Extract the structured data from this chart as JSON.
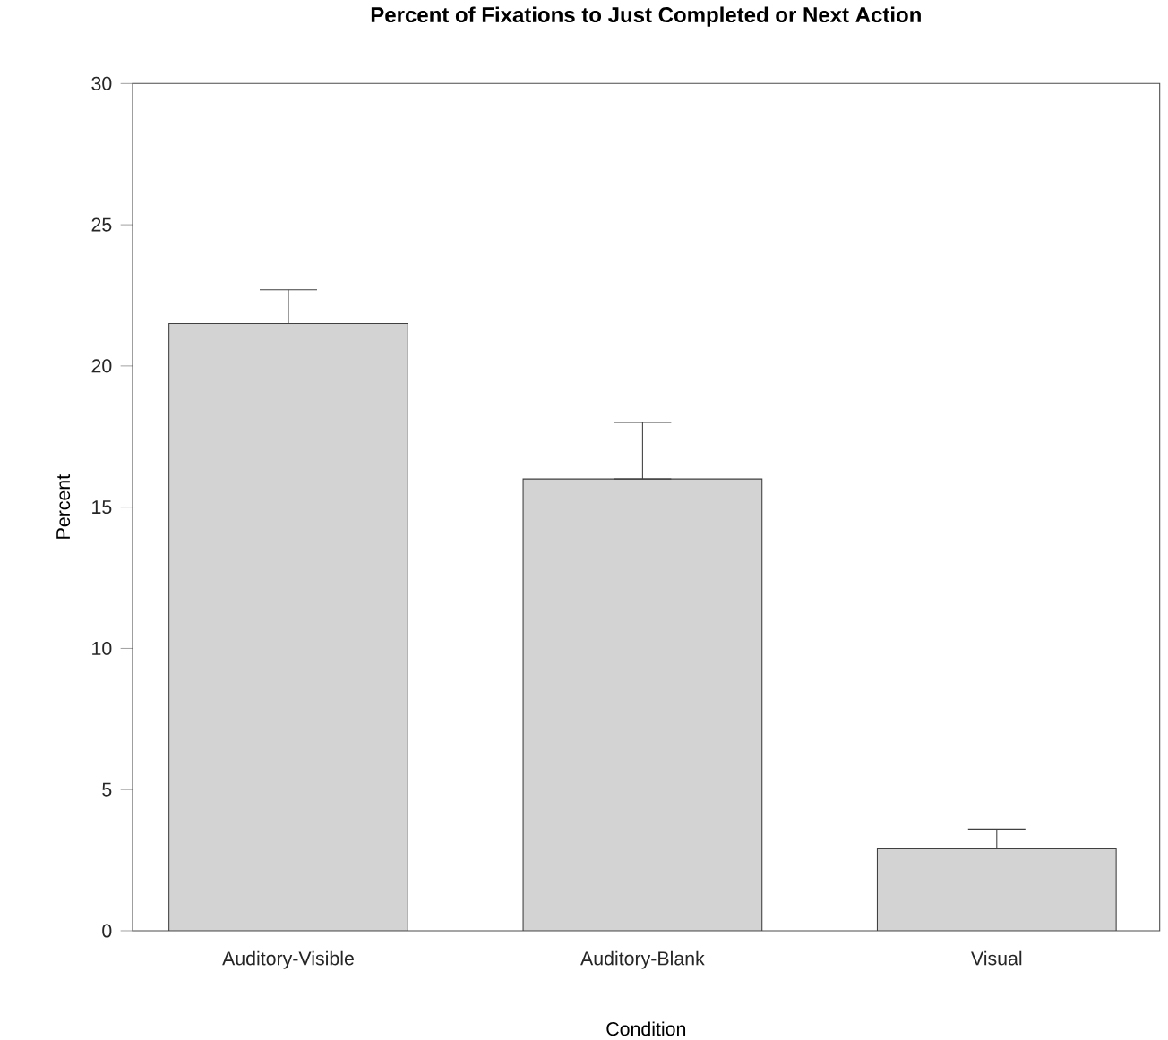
{
  "chart_data": {
    "type": "bar",
    "title": "Percent of Fixations to Just Completed or Next Action",
    "xlabel": "Condition",
    "ylabel": "Percent",
    "categories": [
      "Auditory-Visible",
      "Auditory-Blank",
      "Visual"
    ],
    "values": [
      21.5,
      16.0,
      2.9
    ],
    "errors": [
      [
        21.5,
        22.7
      ],
      [
        16.0,
        18.0
      ],
      [
        2.9,
        3.6
      ]
    ],
    "color": "#d3d3d3",
    "ylim": [
      0,
      30
    ],
    "yticks": [
      0,
      5,
      10,
      15,
      20,
      25,
      30
    ],
    "grid": false
  }
}
